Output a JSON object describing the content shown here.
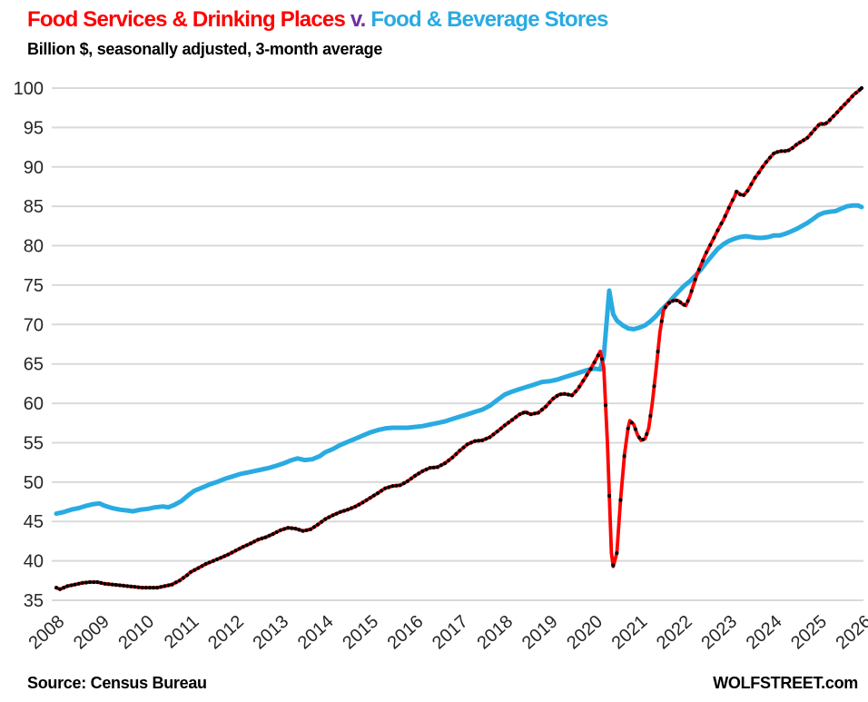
{
  "title": {
    "part_red": "Food Services & Drinking Places",
    "separator": "v.",
    "part_blue": "Food & Beverage Stores"
  },
  "subtitle": "Billion $, seasonally adjusted, 3-month average",
  "footer": {
    "source": "Source: Census Bureau",
    "site": "WOLFSTREET.com"
  },
  "colors": {
    "red": "#FE0000",
    "blue": "#29ABE2",
    "purple": "#7030A0",
    "marker": "#000000",
    "grid": "#D9D9D9",
    "axis_text": "#262626"
  },
  "chart_data": {
    "type": "line",
    "title": "Food Services & Drinking Places v. Food & Beverage Stores",
    "subtitle": "Billion $, seasonally adjusted, 3-month average",
    "xlabel": "",
    "ylabel": "Billion $",
    "grid": "horizontal",
    "legend_position": "none (series identified by title colors)",
    "x_axis": {
      "range": [
        2008,
        2026.1
      ],
      "ticks": [
        2008,
        2009,
        2010,
        2011,
        2012,
        2013,
        2014,
        2015,
        2016,
        2017,
        2018,
        2019,
        2020,
        2021,
        2022,
        2023,
        2024,
        2025,
        2026
      ]
    },
    "y_axis": {
      "range": [
        35,
        100
      ],
      "ticks": [
        35,
        40,
        45,
        50,
        55,
        60,
        65,
        70,
        75,
        80,
        85,
        90,
        95,
        100
      ]
    },
    "series": [
      {
        "name": "Food & Beverage Stores",
        "color": "#29ABE2",
        "line_width": 5,
        "marker": "none",
        "points": [
          [
            2008.0,
            46.0
          ],
          [
            2008.17,
            46.2
          ],
          [
            2008.33,
            46.5
          ],
          [
            2008.5,
            46.7
          ],
          [
            2008.67,
            47.0
          ],
          [
            2008.83,
            47.2
          ],
          [
            2008.96,
            47.3
          ],
          [
            2009.08,
            47.0
          ],
          [
            2009.25,
            46.7
          ],
          [
            2009.42,
            46.5
          ],
          [
            2009.58,
            46.4
          ],
          [
            2009.71,
            46.3
          ],
          [
            2009.88,
            46.5
          ],
          [
            2010.04,
            46.6
          ],
          [
            2010.21,
            46.8
          ],
          [
            2010.38,
            46.9
          ],
          [
            2010.5,
            46.8
          ],
          [
            2010.63,
            47.1
          ],
          [
            2010.79,
            47.6
          ],
          [
            2010.96,
            48.4
          ],
          [
            2011.08,
            48.9
          ],
          [
            2011.25,
            49.3
          ],
          [
            2011.42,
            49.7
          ],
          [
            2011.58,
            50.0
          ],
          [
            2011.75,
            50.4
          ],
          [
            2011.92,
            50.7
          ],
          [
            2012.08,
            51.0
          ],
          [
            2012.25,
            51.2
          ],
          [
            2012.42,
            51.4
          ],
          [
            2012.58,
            51.6
          ],
          [
            2012.75,
            51.8
          ],
          [
            2012.92,
            52.1
          ],
          [
            2013.08,
            52.4
          ],
          [
            2013.25,
            52.8
          ],
          [
            2013.38,
            53.0
          ],
          [
            2013.54,
            52.8
          ],
          [
            2013.71,
            52.9
          ],
          [
            2013.88,
            53.3
          ],
          [
            2014.0,
            53.8
          ],
          [
            2014.17,
            54.2
          ],
          [
            2014.33,
            54.7
          ],
          [
            2014.5,
            55.1
          ],
          [
            2014.67,
            55.5
          ],
          [
            2014.83,
            55.9
          ],
          [
            2015.0,
            56.3
          ],
          [
            2015.17,
            56.6
          ],
          [
            2015.33,
            56.8
          ],
          [
            2015.5,
            56.9
          ],
          [
            2015.67,
            56.9
          ],
          [
            2015.83,
            56.9
          ],
          [
            2016.0,
            57.0
          ],
          [
            2016.17,
            57.1
          ],
          [
            2016.33,
            57.3
          ],
          [
            2016.5,
            57.5
          ],
          [
            2016.67,
            57.7
          ],
          [
            2016.83,
            58.0
          ],
          [
            2017.0,
            58.3
          ],
          [
            2017.17,
            58.6
          ],
          [
            2017.33,
            58.9
          ],
          [
            2017.5,
            59.2
          ],
          [
            2017.67,
            59.7
          ],
          [
            2017.83,
            60.4
          ],
          [
            2018.0,
            61.1
          ],
          [
            2018.17,
            61.5
          ],
          [
            2018.33,
            61.8
          ],
          [
            2018.5,
            62.1
          ],
          [
            2018.67,
            62.4
          ],
          [
            2018.83,
            62.7
          ],
          [
            2019.0,
            62.8
          ],
          [
            2019.17,
            63.0
          ],
          [
            2019.33,
            63.3
          ],
          [
            2019.5,
            63.6
          ],
          [
            2019.67,
            63.9
          ],
          [
            2019.83,
            64.2
          ],
          [
            2020.0,
            64.4
          ],
          [
            2020.13,
            64.3
          ],
          [
            2020.21,
            66.0
          ],
          [
            2020.29,
            71.5
          ],
          [
            2020.33,
            74.3
          ],
          [
            2020.42,
            71.3
          ],
          [
            2020.5,
            70.5
          ],
          [
            2020.63,
            69.9
          ],
          [
            2020.75,
            69.5
          ],
          [
            2020.88,
            69.4
          ],
          [
            2021.0,
            69.6
          ],
          [
            2021.13,
            69.9
          ],
          [
            2021.25,
            70.4
          ],
          [
            2021.38,
            71.1
          ],
          [
            2021.5,
            71.9
          ],
          [
            2021.63,
            72.6
          ],
          [
            2021.75,
            73.4
          ],
          [
            2021.88,
            74.2
          ],
          [
            2022.0,
            74.9
          ],
          [
            2022.13,
            75.5
          ],
          [
            2022.25,
            76.2
          ],
          [
            2022.38,
            77.0
          ],
          [
            2022.5,
            77.9
          ],
          [
            2022.63,
            78.8
          ],
          [
            2022.75,
            79.6
          ],
          [
            2022.88,
            80.2
          ],
          [
            2023.0,
            80.6
          ],
          [
            2023.13,
            80.9
          ],
          [
            2023.25,
            81.1
          ],
          [
            2023.38,
            81.2
          ],
          [
            2023.5,
            81.1
          ],
          [
            2023.63,
            81.0
          ],
          [
            2023.75,
            81.0
          ],
          [
            2023.88,
            81.1
          ],
          [
            2024.0,
            81.3
          ],
          [
            2024.13,
            81.3
          ],
          [
            2024.25,
            81.5
          ],
          [
            2024.38,
            81.8
          ],
          [
            2024.5,
            82.1
          ],
          [
            2024.63,
            82.5
          ],
          [
            2024.75,
            82.9
          ],
          [
            2024.88,
            83.4
          ],
          [
            2025.0,
            83.9
          ],
          [
            2025.13,
            84.2
          ],
          [
            2025.25,
            84.3
          ],
          [
            2025.38,
            84.4
          ],
          [
            2025.5,
            84.7
          ],
          [
            2025.63,
            85.0
          ],
          [
            2025.75,
            85.1
          ],
          [
            2025.88,
            85.1
          ],
          [
            2025.96,
            84.9
          ]
        ]
      },
      {
        "name": "Food Services & Drinking Places",
        "color": "#FE0000",
        "line_width": 3.8,
        "marker": "black-dots-monthly",
        "marker_color": "#000000",
        "points": [
          [
            2008.0,
            36.6
          ],
          [
            2008.08,
            36.4
          ],
          [
            2008.25,
            36.8
          ],
          [
            2008.42,
            37.0
          ],
          [
            2008.58,
            37.2
          ],
          [
            2008.75,
            37.3
          ],
          [
            2008.92,
            37.3
          ],
          [
            2009.08,
            37.1
          ],
          [
            2009.25,
            37.0
          ],
          [
            2009.42,
            36.9
          ],
          [
            2009.58,
            36.8
          ],
          [
            2009.75,
            36.7
          ],
          [
            2009.92,
            36.6
          ],
          [
            2010.08,
            36.6
          ],
          [
            2010.25,
            36.6
          ],
          [
            2010.42,
            36.8
          ],
          [
            2010.58,
            37.0
          ],
          [
            2010.75,
            37.5
          ],
          [
            2010.92,
            38.2
          ],
          [
            2011.0,
            38.6
          ],
          [
            2011.17,
            39.1
          ],
          [
            2011.33,
            39.6
          ],
          [
            2011.5,
            40.0
          ],
          [
            2011.67,
            40.4
          ],
          [
            2011.83,
            40.8
          ],
          [
            2012.0,
            41.3
          ],
          [
            2012.17,
            41.8
          ],
          [
            2012.33,
            42.2
          ],
          [
            2012.5,
            42.7
          ],
          [
            2012.67,
            43.0
          ],
          [
            2012.83,
            43.4
          ],
          [
            2013.0,
            43.9
          ],
          [
            2013.17,
            44.2
          ],
          [
            2013.33,
            44.1
          ],
          [
            2013.5,
            43.8
          ],
          [
            2013.67,
            44.0
          ],
          [
            2013.83,
            44.6
          ],
          [
            2014.0,
            45.3
          ],
          [
            2014.17,
            45.8
          ],
          [
            2014.33,
            46.2
          ],
          [
            2014.5,
            46.5
          ],
          [
            2014.67,
            46.9
          ],
          [
            2014.83,
            47.4
          ],
          [
            2015.0,
            48.0
          ],
          [
            2015.17,
            48.6
          ],
          [
            2015.33,
            49.2
          ],
          [
            2015.5,
            49.5
          ],
          [
            2015.67,
            49.6
          ],
          [
            2015.83,
            50.1
          ],
          [
            2016.0,
            50.8
          ],
          [
            2016.17,
            51.4
          ],
          [
            2016.33,
            51.8
          ],
          [
            2016.5,
            51.9
          ],
          [
            2016.67,
            52.4
          ],
          [
            2016.83,
            53.1
          ],
          [
            2017.0,
            54.0
          ],
          [
            2017.17,
            54.8
          ],
          [
            2017.33,
            55.2
          ],
          [
            2017.5,
            55.3
          ],
          [
            2017.67,
            55.7
          ],
          [
            2017.83,
            56.4
          ],
          [
            2018.0,
            57.2
          ],
          [
            2018.17,
            57.9
          ],
          [
            2018.33,
            58.6
          ],
          [
            2018.46,
            58.9
          ],
          [
            2018.58,
            58.6
          ],
          [
            2018.75,
            58.8
          ],
          [
            2018.92,
            59.6
          ],
          [
            2019.08,
            60.6
          ],
          [
            2019.21,
            61.1
          ],
          [
            2019.33,
            61.2
          ],
          [
            2019.5,
            61.0
          ],
          [
            2019.63,
            61.8
          ],
          [
            2019.79,
            63.2
          ],
          [
            2019.92,
            64.4
          ],
          [
            2020.04,
            65.6
          ],
          [
            2020.13,
            66.6
          ],
          [
            2020.21,
            64.5
          ],
          [
            2020.29,
            55.0
          ],
          [
            2020.38,
            41.0
          ],
          [
            2020.42,
            39.3
          ],
          [
            2020.5,
            41.0
          ],
          [
            2020.58,
            47.5
          ],
          [
            2020.67,
            53.5
          ],
          [
            2020.75,
            56.8
          ],
          [
            2020.79,
            57.8
          ],
          [
            2020.88,
            57.3
          ],
          [
            2020.96,
            56.0
          ],
          [
            2021.04,
            55.3
          ],
          [
            2021.13,
            55.5
          ],
          [
            2021.21,
            56.8
          ],
          [
            2021.29,
            60.0
          ],
          [
            2021.38,
            64.5
          ],
          [
            2021.46,
            69.0
          ],
          [
            2021.54,
            71.8
          ],
          [
            2021.63,
            72.6
          ],
          [
            2021.71,
            72.9
          ],
          [
            2021.79,
            73.1
          ],
          [
            2021.88,
            73.0
          ],
          [
            2021.96,
            72.6
          ],
          [
            2022.04,
            72.4
          ],
          [
            2022.13,
            73.6
          ],
          [
            2022.21,
            75.0
          ],
          [
            2022.29,
            76.4
          ],
          [
            2022.38,
            77.6
          ],
          [
            2022.46,
            78.7
          ],
          [
            2022.54,
            79.6
          ],
          [
            2022.63,
            80.6
          ],
          [
            2022.71,
            81.5
          ],
          [
            2022.79,
            82.4
          ],
          [
            2022.88,
            83.3
          ],
          [
            2022.96,
            84.3
          ],
          [
            2023.04,
            85.3
          ],
          [
            2023.13,
            86.3
          ],
          [
            2023.17,
            86.9
          ],
          [
            2023.25,
            86.5
          ],
          [
            2023.33,
            86.4
          ],
          [
            2023.42,
            87.0
          ],
          [
            2023.5,
            87.8
          ],
          [
            2023.58,
            88.6
          ],
          [
            2023.67,
            89.3
          ],
          [
            2023.75,
            90.0
          ],
          [
            2023.83,
            90.6
          ],
          [
            2023.92,
            91.2
          ],
          [
            2024.0,
            91.7
          ],
          [
            2024.08,
            91.9
          ],
          [
            2024.17,
            92.0
          ],
          [
            2024.25,
            92.0
          ],
          [
            2024.33,
            92.1
          ],
          [
            2024.42,
            92.4
          ],
          [
            2024.5,
            92.8
          ],
          [
            2024.58,
            93.1
          ],
          [
            2024.67,
            93.4
          ],
          [
            2024.75,
            93.7
          ],
          [
            2024.83,
            94.2
          ],
          [
            2024.92,
            94.8
          ],
          [
            2025.0,
            95.3
          ],
          [
            2025.04,
            95.5
          ],
          [
            2025.13,
            95.4
          ],
          [
            2025.21,
            95.7
          ],
          [
            2025.29,
            96.2
          ],
          [
            2025.38,
            96.7
          ],
          [
            2025.46,
            97.2
          ],
          [
            2025.54,
            97.7
          ],
          [
            2025.63,
            98.2
          ],
          [
            2025.71,
            98.7
          ],
          [
            2025.79,
            99.2
          ],
          [
            2025.88,
            99.6
          ],
          [
            2025.96,
            100.0
          ]
        ]
      }
    ]
  }
}
